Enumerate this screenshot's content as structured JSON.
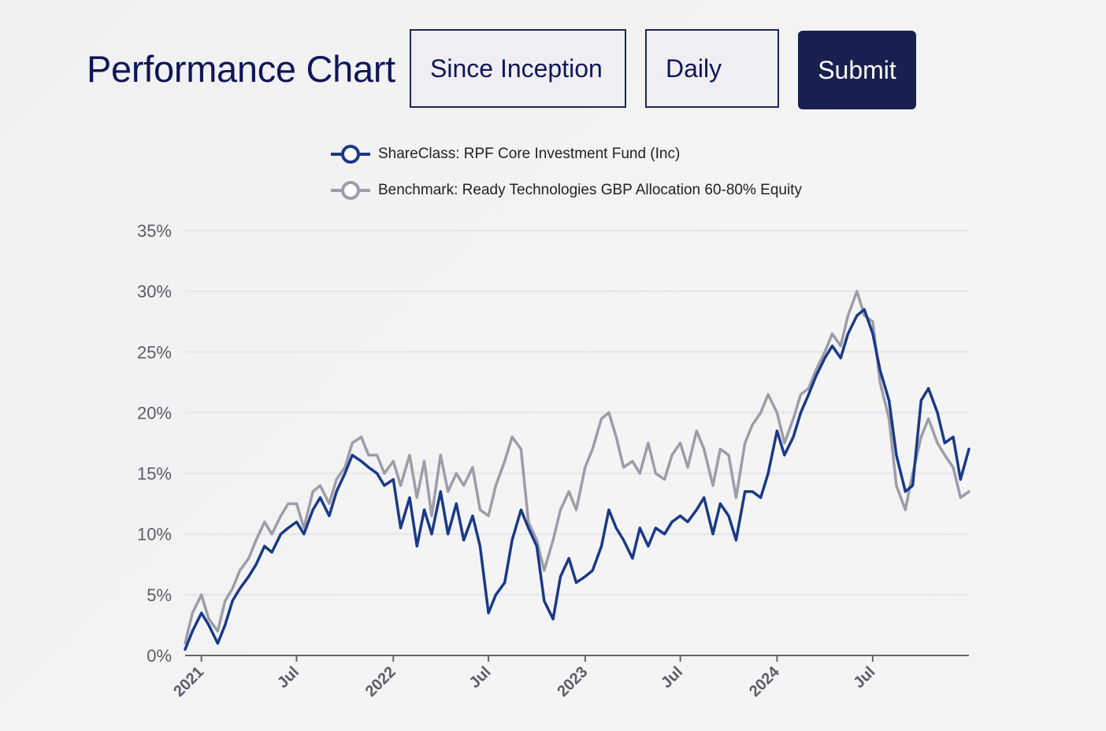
{
  "header": {
    "title": "Performance Chart",
    "range_select_value": "Since Inception",
    "frequency_select_value": "Daily",
    "submit_label": "Submit"
  },
  "colors": {
    "title": "#0f1658",
    "submit_bg": "#18204f",
    "fund_series": "#1a3a87",
    "benchmark_series": "#9e9ca8",
    "gridline": "#e4e4ee",
    "axis": "#666666"
  },
  "chart_data": {
    "type": "line",
    "title": "",
    "xlabel": "",
    "ylabel": "",
    "ylim": [
      0,
      35
    ],
    "y_ticks": [
      "0%",
      "5%",
      "10%",
      "15%",
      "20%",
      "25%",
      "30%",
      "35%"
    ],
    "x_ticks": [
      {
        "label": "2021",
        "date": "2021-01-01"
      },
      {
        "label": "Jul",
        "date": "2021-07-01"
      },
      {
        "label": "2022",
        "date": "2022-01-01"
      },
      {
        "label": "Jul",
        "date": "2022-07-01"
      },
      {
        "label": "2023",
        "date": "2023-01-01"
      },
      {
        "label": "Jul",
        "date": "2023-07-01"
      },
      {
        "label": "2024",
        "date": "2024-01-01"
      },
      {
        "label": "Jul",
        "date": "2024-07-01"
      }
    ],
    "xlim": [
      "2020-12-01",
      "2024-12-31"
    ],
    "grid": true,
    "legend_position": "top",
    "series": [
      {
        "name": "ShareClass: RPF Core Investment Fund (Inc)",
        "x": [
          "2020-12-01",
          "2020-12-15",
          "2021-01-01",
          "2021-01-15",
          "2021-02-01",
          "2021-02-15",
          "2021-03-01",
          "2021-03-15",
          "2021-04-01",
          "2021-04-15",
          "2021-05-01",
          "2021-05-15",
          "2021-06-01",
          "2021-06-15",
          "2021-07-01",
          "2021-07-15",
          "2021-08-01",
          "2021-08-15",
          "2021-09-01",
          "2021-09-15",
          "2021-10-01",
          "2021-10-15",
          "2021-11-01",
          "2021-11-15",
          "2021-12-01",
          "2021-12-15",
          "2022-01-01",
          "2022-01-15",
          "2022-02-01",
          "2022-02-15",
          "2022-03-01",
          "2022-03-15",
          "2022-04-01",
          "2022-04-15",
          "2022-05-01",
          "2022-05-15",
          "2022-06-01",
          "2022-06-15",
          "2022-07-01",
          "2022-07-15",
          "2022-08-01",
          "2022-08-15",
          "2022-09-01",
          "2022-09-15",
          "2022-10-01",
          "2022-10-15",
          "2022-11-01",
          "2022-11-15",
          "2022-12-01",
          "2022-12-15",
          "2023-01-01",
          "2023-01-15",
          "2023-02-01",
          "2023-02-15",
          "2023-03-01",
          "2023-03-15",
          "2023-04-01",
          "2023-04-15",
          "2023-05-01",
          "2023-05-15",
          "2023-06-01",
          "2023-06-15",
          "2023-07-01",
          "2023-07-15",
          "2023-08-01",
          "2023-08-15",
          "2023-09-01",
          "2023-09-15",
          "2023-10-01",
          "2023-10-15",
          "2023-11-01",
          "2023-11-15",
          "2023-12-01",
          "2023-12-15",
          "2024-01-01",
          "2024-01-15",
          "2024-02-01",
          "2024-02-15",
          "2024-03-01",
          "2024-03-15",
          "2024-04-01",
          "2024-04-15",
          "2024-05-01",
          "2024-05-15",
          "2024-06-01",
          "2024-06-15",
          "2024-07-01",
          "2024-07-15",
          "2024-08-01",
          "2024-08-15",
          "2024-09-01",
          "2024-09-15",
          "2024-10-01",
          "2024-10-15",
          "2024-11-01",
          "2024-11-15",
          "2024-12-01",
          "2024-12-15",
          "2024-12-31"
        ],
        "values": [
          0.5,
          2.0,
          3.5,
          2.5,
          1.0,
          2.5,
          4.5,
          5.5,
          6.5,
          7.5,
          9.0,
          8.5,
          10.0,
          10.5,
          11.0,
          10.0,
          12.0,
          13.0,
          11.5,
          13.5,
          15.0,
          16.5,
          16.0,
          15.5,
          15.0,
          14.0,
          14.5,
          10.5,
          13.0,
          9.0,
          12.0,
          10.0,
          13.5,
          10.0,
          12.5,
          9.5,
          11.5,
          9.0,
          3.5,
          5.0,
          6.0,
          9.5,
          12.0,
          10.5,
          9.0,
          4.5,
          3.0,
          6.5,
          8.0,
          6.0,
          6.5,
          7.0,
          9.0,
          12.0,
          10.5,
          9.5,
          8.0,
          10.5,
          9.0,
          10.5,
          10.0,
          11.0,
          11.5,
          11.0,
          12.0,
          13.0,
          10.0,
          12.5,
          11.5,
          9.5,
          13.5,
          13.5,
          13.0,
          15.0,
          18.5,
          16.5,
          18.0,
          20.0,
          21.5,
          23.0,
          24.5,
          25.5,
          24.5,
          26.5,
          28.0,
          28.5,
          26.5,
          23.5,
          21.0,
          16.5,
          13.5,
          14.0,
          21.0,
          22.0,
          20.0,
          17.5,
          18.0,
          14.5,
          17.0
        ]
      },
      {
        "name": "Benchmark: Ready Technologies GBP Allocation 60-80% Equity",
        "x": [
          "2020-12-01",
          "2020-12-15",
          "2021-01-01",
          "2021-01-15",
          "2021-02-01",
          "2021-02-15",
          "2021-03-01",
          "2021-03-15",
          "2021-04-01",
          "2021-04-15",
          "2021-05-01",
          "2021-05-15",
          "2021-06-01",
          "2021-06-15",
          "2021-07-01",
          "2021-07-15",
          "2021-08-01",
          "2021-08-15",
          "2021-09-01",
          "2021-09-15",
          "2021-10-01",
          "2021-10-15",
          "2021-11-01",
          "2021-11-15",
          "2021-12-01",
          "2021-12-15",
          "2022-01-01",
          "2022-01-15",
          "2022-02-01",
          "2022-02-15",
          "2022-03-01",
          "2022-03-15",
          "2022-04-01",
          "2022-04-15",
          "2022-05-01",
          "2022-05-15",
          "2022-06-01",
          "2022-06-15",
          "2022-07-01",
          "2022-07-15",
          "2022-08-01",
          "2022-08-15",
          "2022-09-01",
          "2022-09-15",
          "2022-10-01",
          "2022-10-15",
          "2022-11-01",
          "2022-11-15",
          "2022-12-01",
          "2022-12-15",
          "2023-01-01",
          "2023-01-15",
          "2023-02-01",
          "2023-02-15",
          "2023-03-01",
          "2023-03-15",
          "2023-04-01",
          "2023-04-15",
          "2023-05-01",
          "2023-05-15",
          "2023-06-01",
          "2023-06-15",
          "2023-07-01",
          "2023-07-15",
          "2023-08-01",
          "2023-08-15",
          "2023-09-01",
          "2023-09-15",
          "2023-10-01",
          "2023-10-15",
          "2023-11-01",
          "2023-11-15",
          "2023-12-01",
          "2023-12-15",
          "2024-01-01",
          "2024-01-15",
          "2024-02-01",
          "2024-02-15",
          "2024-03-01",
          "2024-03-15",
          "2024-04-01",
          "2024-04-15",
          "2024-05-01",
          "2024-05-15",
          "2024-06-01",
          "2024-06-15",
          "2024-07-01",
          "2024-07-15",
          "2024-08-01",
          "2024-08-15",
          "2024-09-01",
          "2024-09-15",
          "2024-10-01",
          "2024-10-15",
          "2024-11-01",
          "2024-11-15",
          "2024-12-01",
          "2024-12-15",
          "2024-12-31"
        ],
        "values": [
          1.0,
          3.5,
          5.0,
          3.0,
          2.0,
          4.5,
          5.5,
          7.0,
          8.0,
          9.5,
          11.0,
          10.0,
          11.5,
          12.5,
          12.5,
          10.5,
          13.5,
          14.0,
          12.5,
          14.5,
          15.5,
          17.5,
          18.0,
          16.5,
          16.5,
          15.0,
          16.0,
          14.0,
          16.5,
          13.0,
          16.0,
          11.5,
          16.5,
          13.5,
          15.0,
          14.0,
          15.5,
          12.0,
          11.5,
          14.0,
          16.0,
          18.0,
          17.0,
          11.0,
          9.5,
          7.0,
          9.5,
          12.0,
          13.5,
          12.0,
          15.5,
          17.0,
          19.5,
          20.0,
          18.0,
          15.5,
          16.0,
          15.0,
          17.5,
          15.0,
          14.5,
          16.5,
          17.5,
          15.5,
          18.5,
          17.0,
          14.0,
          17.0,
          16.5,
          13.0,
          17.5,
          19.0,
          20.0,
          21.5,
          20.0,
          17.5,
          19.5,
          21.5,
          22.0,
          23.5,
          25.0,
          26.5,
          25.5,
          28.0,
          30.0,
          28.0,
          27.5,
          22.5,
          19.5,
          14.0,
          12.0,
          15.0,
          18.0,
          19.5,
          17.5,
          16.5,
          15.5,
          13.0,
          13.5
        ]
      }
    ]
  }
}
